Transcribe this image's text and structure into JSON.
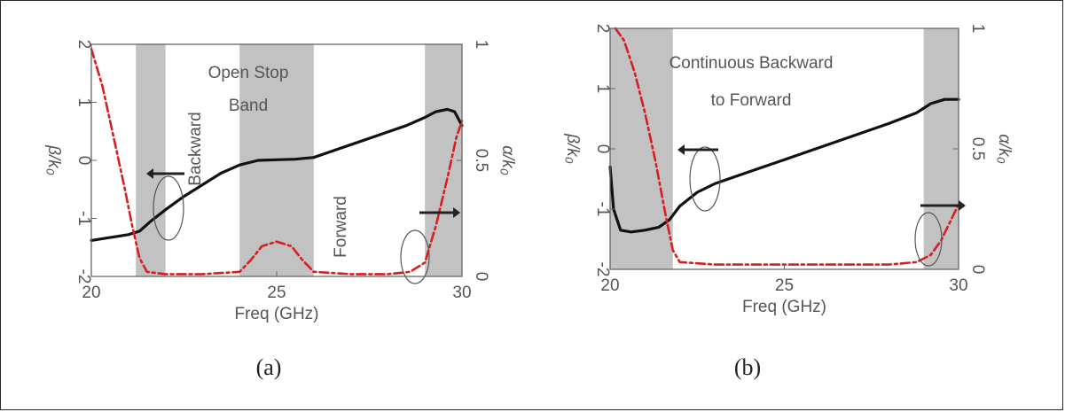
{
  "chart_data": [
    {
      "id": "a",
      "type": "line",
      "caption": "(a)",
      "xlabel": "Freq (GHz)",
      "ylabel_left": "β/k₀",
      "ylabel_right": "α/k₀",
      "xlim": [
        20,
        30
      ],
      "ylim_left": [
        -2,
        2
      ],
      "ylim_right": [
        0,
        1
      ],
      "xticks": [
        "20",
        "25",
        "30"
      ],
      "yticks_left": [
        "-2",
        "-1",
        "0",
        "1",
        "2"
      ],
      "yticks_right": [
        "0",
        "0.5",
        "1"
      ],
      "shaded_bands": [
        [
          21.2,
          22.0
        ],
        [
          24.0,
          26.0
        ],
        [
          29.0,
          30.0
        ]
      ],
      "annotations": [
        "Open Stop",
        "Band",
        "Backward",
        "Forward"
      ],
      "series": [
        {
          "axis": "left",
          "color": "#111111",
          "style": "solid",
          "x": [
            20,
            20.5,
            21,
            21.3,
            21.6,
            22,
            22.5,
            23,
            23.5,
            24,
            24.5,
            25,
            25.5,
            26,
            26.5,
            27,
            27.5,
            28,
            28.5,
            29,
            29.3,
            29.6,
            29.8,
            30
          ],
          "y": [
            -1.38,
            -1.33,
            -1.28,
            -1.22,
            -1.05,
            -0.85,
            -0.62,
            -0.42,
            -0.22,
            -0.08,
            0.0,
            0.01,
            0.02,
            0.05,
            0.16,
            0.27,
            0.38,
            0.49,
            0.6,
            0.74,
            0.84,
            0.88,
            0.84,
            0.6
          ]
        },
        {
          "axis": "right",
          "color": "#d62020",
          "style": "dash-dot",
          "x": [
            20,
            20.3,
            20.6,
            20.9,
            21.1,
            21.3,
            21.5,
            22,
            23,
            24,
            24.3,
            24.6,
            25,
            25.4,
            25.7,
            26,
            27,
            28,
            28.6,
            29,
            29.3,
            29.6,
            29.85,
            30
          ],
          "y": [
            0.98,
            0.82,
            0.6,
            0.38,
            0.22,
            0.08,
            0.02,
            0.01,
            0.01,
            0.02,
            0.07,
            0.13,
            0.15,
            0.13,
            0.07,
            0.02,
            0.01,
            0.01,
            0.02,
            0.06,
            0.22,
            0.42,
            0.6,
            0.67
          ]
        }
      ]
    },
    {
      "id": "b",
      "type": "line",
      "caption": "(b)",
      "xlabel": "Freq (GHz)",
      "ylabel_left": "β/k₀",
      "ylabel_right": "α/k₀",
      "xlim": [
        20,
        30
      ],
      "ylim_left": [
        -2,
        2
      ],
      "ylim_right": [
        0,
        1
      ],
      "xticks": [
        "20",
        "25",
        "30"
      ],
      "yticks_left": [
        "-2",
        "-1",
        "0",
        "1",
        "2"
      ],
      "yticks_right": [
        "0",
        "0.5",
        "1"
      ],
      "shaded_bands": [
        [
          20.0,
          21.8
        ],
        [
          29.0,
          30.0
        ]
      ],
      "annotations": [
        "Continuous Backward",
        "to Forward"
      ],
      "series": [
        {
          "axis": "left",
          "color": "#111111",
          "style": "solid",
          "x": [
            20,
            20.1,
            20.3,
            20.6,
            21,
            21.4,
            21.7,
            22,
            22.5,
            23,
            24,
            25,
            26,
            27,
            28,
            28.8,
            29.2,
            29.6,
            30
          ],
          "y": [
            -0.3,
            -1.0,
            -1.35,
            -1.38,
            -1.35,
            -1.3,
            -1.18,
            -0.95,
            -0.72,
            -0.58,
            -0.38,
            -0.18,
            0.02,
            0.22,
            0.42,
            0.6,
            0.75,
            0.82,
            0.82
          ]
        },
        {
          "axis": "right",
          "color": "#d62020",
          "style": "dash-dot",
          "x": [
            20.15,
            20.4,
            20.7,
            21,
            21.3,
            21.6,
            21.8,
            22,
            23,
            24,
            25,
            26,
            27,
            28,
            28.8,
            29.2,
            29.5,
            29.7,
            29.9,
            30
          ],
          "y": [
            1.0,
            0.95,
            0.82,
            0.65,
            0.45,
            0.22,
            0.08,
            0.03,
            0.02,
            0.02,
            0.02,
            0.02,
            0.02,
            0.02,
            0.03,
            0.06,
            0.12,
            0.18,
            0.24,
            0.27
          ]
        }
      ]
    }
  ]
}
